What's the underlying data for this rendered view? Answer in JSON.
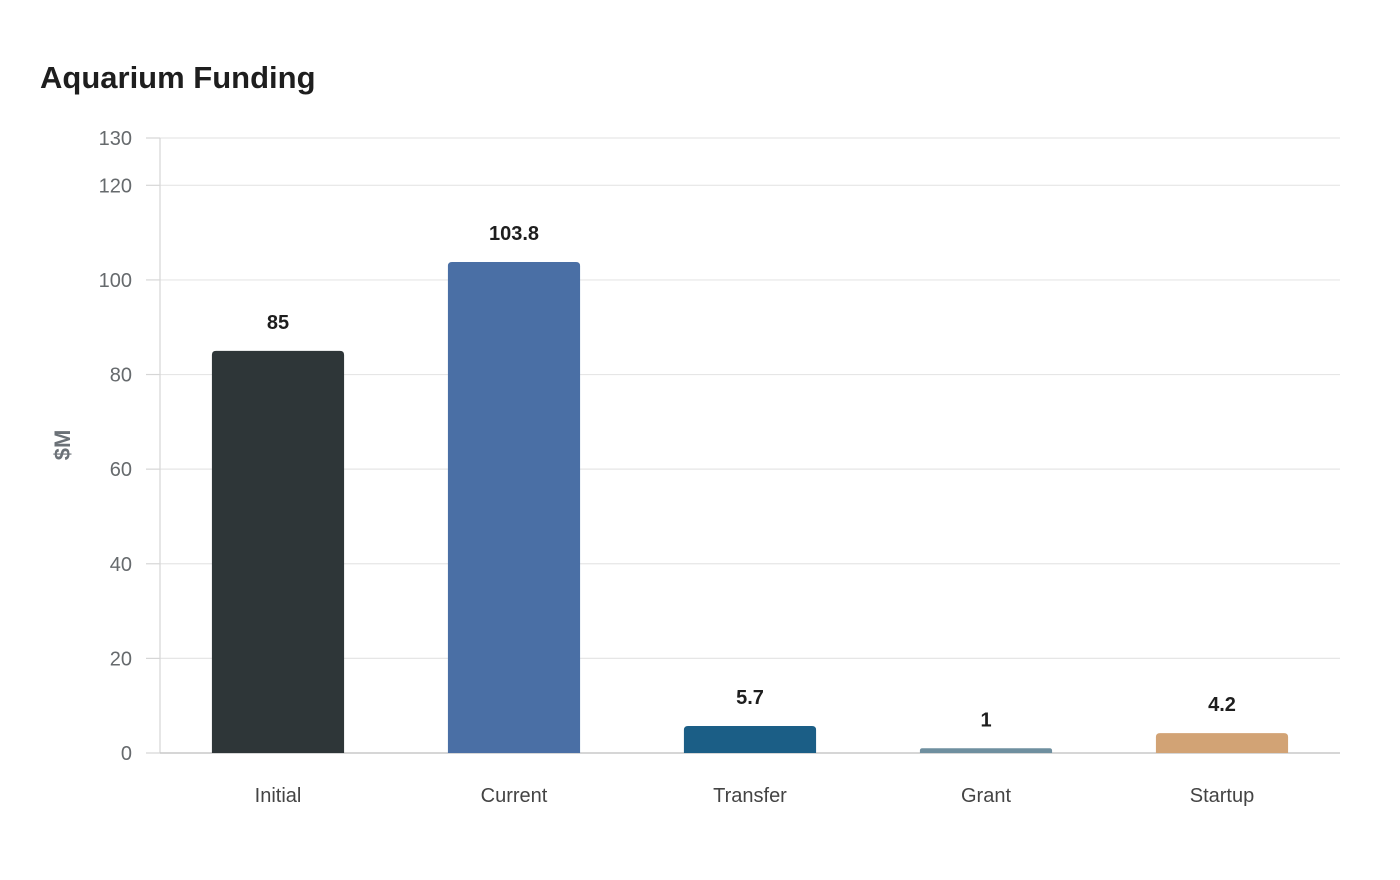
{
  "chart_data": {
    "type": "bar",
    "title": "Aquarium Funding",
    "xlabel": "",
    "ylabel": "$M",
    "categories": [
      "Initial",
      "Current",
      "Transfer",
      "Grant",
      "Startup"
    ],
    "values": [
      85,
      103.8,
      5.7,
      1,
      4.2
    ],
    "value_labels": [
      "85",
      "103.8",
      "5.7",
      "1",
      "4.2"
    ],
    "colors": [
      "#2e3638",
      "#4a6fa5",
      "#1b5e86",
      "#6f8f9f",
      "#d2a375"
    ],
    "ylim": [
      0,
      130
    ],
    "yticks": [
      0,
      20,
      40,
      60,
      80,
      100,
      120,
      130
    ],
    "grid": true,
    "legend": "none"
  }
}
